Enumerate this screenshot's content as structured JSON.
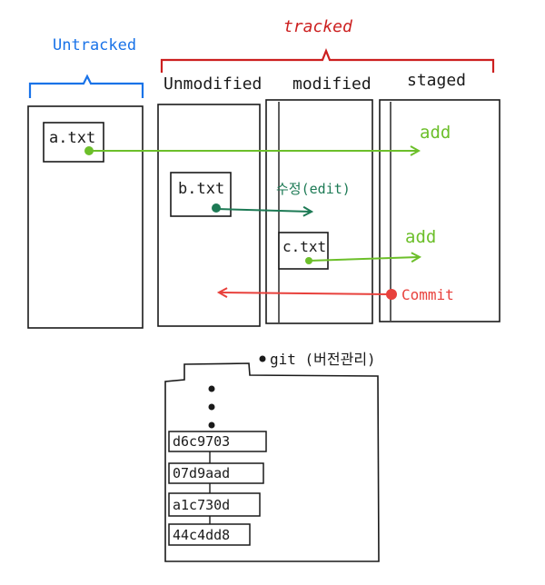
{
  "groups": {
    "untracked": "Untracked",
    "tracked": "tracked"
  },
  "states": {
    "unmodified": "Unmodified",
    "modified": "modified",
    "staged": "staged"
  },
  "files": {
    "a": "a.txt",
    "b": "b.txt",
    "c": "c.txt"
  },
  "actions": {
    "add_a": "add",
    "edit_b": "수정(edit)",
    "add_c": "add",
    "commit": "Commit"
  },
  "repo": {
    "title": "git (버전관리)",
    "commits": [
      "d6c9703",
      "07d9aad",
      "a1c730d",
      "44c4dd8"
    ]
  },
  "colors": {
    "untracked": "#1a73e8",
    "tracked": "#cc1f1f",
    "add": "#6cbf2a",
    "edit": "#1d7a55",
    "commit": "#e8413c",
    "ink": "#1a1a1a"
  }
}
